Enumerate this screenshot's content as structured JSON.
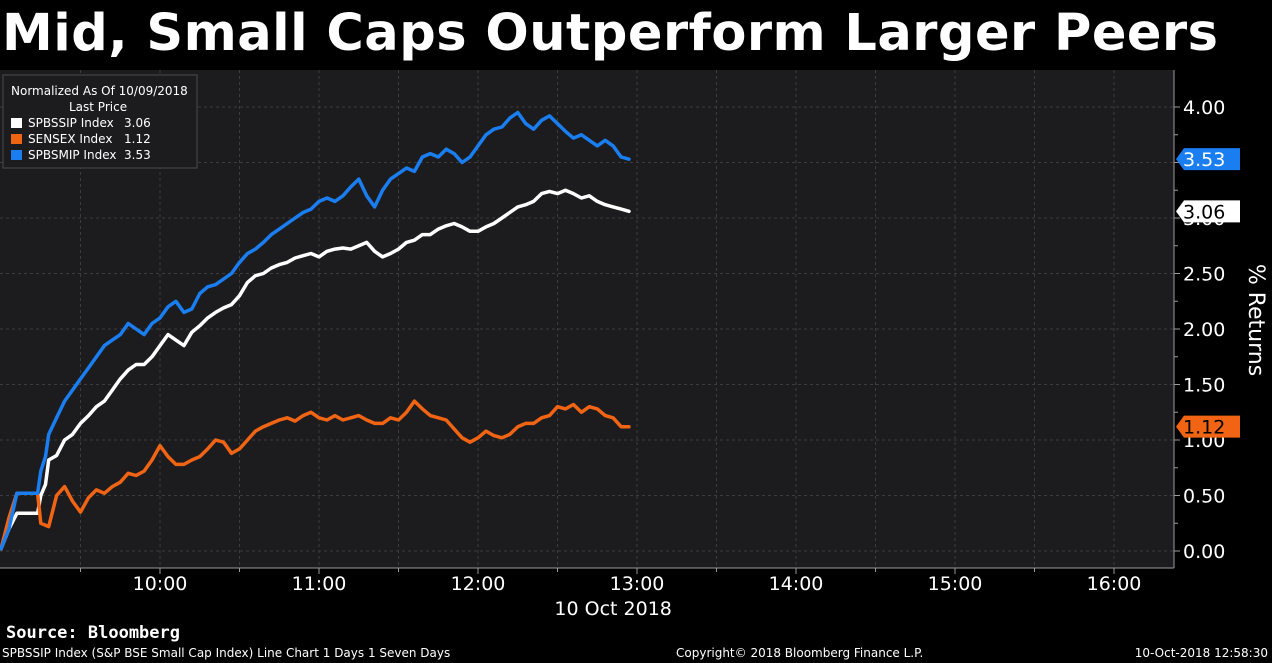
{
  "page": {
    "title": "Mid, Small Caps Outperform Larger Peers",
    "source": "Source: Bloomberg",
    "footer_left": "SPBSSIP Index (S&P BSE Small Cap Index) Line Chart 1 Days 1 Seven Days",
    "footer_center": "Copyright© 2018 Bloomberg Finance L.P.",
    "footer_right": "10-Oct-2018 12:58:30"
  },
  "colors": {
    "background": "#000000",
    "plot_background": "#1c1c1f",
    "grid": "#3c3c3c",
    "white_series": "#ffffff",
    "orange_series": "#f06414",
    "blue_series": "#1a7ef0"
  },
  "chart_data": {
    "type": "line",
    "title": "Mid, Small Caps Outperform Larger Peers",
    "xlabel": "10 Oct 2018",
    "ylabel": "% Returns",
    "ylim": [
      0,
      4.35
    ],
    "xlim_hours": [
      9.0,
      16.35
    ],
    "x_ticks": [
      10,
      11,
      12,
      13,
      14,
      15,
      16
    ],
    "x_tick_labels": [
      "10:00",
      "11:00",
      "12:00",
      "13:00",
      "14:00",
      "15:00",
      "16:00"
    ],
    "y_ticks": [
      0,
      0.5,
      1,
      1.5,
      2,
      2.5,
      3,
      3.5,
      4
    ],
    "y_tick_labels": [
      "0.00",
      "0.50",
      "1.00",
      "1.50",
      "2.00",
      "2.50",
      "3.00",
      "3.50",
      "4.00"
    ],
    "grid": true,
    "legend": {
      "header1": "Normalized As Of 10/09/2018",
      "header2": "Last Price",
      "position": "top-left",
      "entries": [
        {
          "label": "SPBSSIP Index",
          "value": "3.06",
          "color": "#ffffff"
        },
        {
          "label": "SENSEX Index",
          "value": "1.12",
          "color": "#f06414"
        },
        {
          "label": "SPBSMIP Index",
          "value": "3.53",
          "color": "#1a7ef0"
        }
      ]
    },
    "last_value_tags": [
      {
        "series": "SPBSMIP Index",
        "value": 3.53,
        "text": "3.53",
        "color": "#1a7ef0",
        "text_color": "#ffffff"
      },
      {
        "series": "SPBSSIP Index",
        "value": 3.06,
        "text": "3.06",
        "color": "#ffffff",
        "text_color": "#000000"
      },
      {
        "series": "SENSEX Index",
        "value": 1.12,
        "text": "1.12",
        "color": "#f06414",
        "text_color": "#000000"
      }
    ],
    "series": [
      {
        "name": "SPBSSIP Index",
        "color": "#ffffff",
        "points": [
          [
            9.0,
            0.02
          ],
          [
            9.05,
            0.2
          ],
          [
            9.1,
            0.34
          ],
          [
            9.15,
            0.34
          ],
          [
            9.2,
            0.34
          ],
          [
            9.23,
            0.34
          ],
          [
            9.25,
            0.5
          ],
          [
            9.28,
            0.6
          ],
          [
            9.3,
            0.82
          ],
          [
            9.35,
            0.86
          ],
          [
            9.4,
            1.0
          ],
          [
            9.45,
            1.05
          ],
          [
            9.5,
            1.15
          ],
          [
            9.55,
            1.22
          ],
          [
            9.6,
            1.3
          ],
          [
            9.65,
            1.35
          ],
          [
            9.7,
            1.45
          ],
          [
            9.75,
            1.55
          ],
          [
            9.8,
            1.63
          ],
          [
            9.85,
            1.68
          ],
          [
            9.9,
            1.68
          ],
          [
            9.95,
            1.75
          ],
          [
            10.0,
            1.85
          ],
          [
            10.05,
            1.95
          ],
          [
            10.1,
            1.9
          ],
          [
            10.15,
            1.85
          ],
          [
            10.2,
            1.97
          ],
          [
            10.25,
            2.03
          ],
          [
            10.3,
            2.1
          ],
          [
            10.35,
            2.15
          ],
          [
            10.4,
            2.19
          ],
          [
            10.45,
            2.22
          ],
          [
            10.5,
            2.3
          ],
          [
            10.55,
            2.42
          ],
          [
            10.6,
            2.48
          ],
          [
            10.65,
            2.5
          ],
          [
            10.7,
            2.55
          ],
          [
            10.75,
            2.58
          ],
          [
            10.8,
            2.6
          ],
          [
            10.85,
            2.64
          ],
          [
            10.9,
            2.66
          ],
          [
            10.95,
            2.68
          ],
          [
            11.0,
            2.65
          ],
          [
            11.05,
            2.7
          ],
          [
            11.1,
            2.72
          ],
          [
            11.15,
            2.73
          ],
          [
            11.2,
            2.72
          ],
          [
            11.25,
            2.75
          ],
          [
            11.3,
            2.78
          ],
          [
            11.35,
            2.7
          ],
          [
            11.4,
            2.65
          ],
          [
            11.45,
            2.68
          ],
          [
            11.5,
            2.72
          ],
          [
            11.55,
            2.78
          ],
          [
            11.6,
            2.8
          ],
          [
            11.65,
            2.85
          ],
          [
            11.7,
            2.85
          ],
          [
            11.75,
            2.9
          ],
          [
            11.8,
            2.93
          ],
          [
            11.85,
            2.95
          ],
          [
            11.9,
            2.92
          ],
          [
            11.95,
            2.88
          ],
          [
            12.0,
            2.88
          ],
          [
            12.05,
            2.92
          ],
          [
            12.1,
            2.95
          ],
          [
            12.15,
            3.0
          ],
          [
            12.2,
            3.05
          ],
          [
            12.25,
            3.1
          ],
          [
            12.3,
            3.12
          ],
          [
            12.35,
            3.15
          ],
          [
            12.4,
            3.22
          ],
          [
            12.45,
            3.24
          ],
          [
            12.5,
            3.22
          ],
          [
            12.55,
            3.25
          ],
          [
            12.6,
            3.22
          ],
          [
            12.65,
            3.18
          ],
          [
            12.7,
            3.2
          ],
          [
            12.75,
            3.15
          ],
          [
            12.8,
            3.12
          ],
          [
            12.85,
            3.1
          ],
          [
            12.9,
            3.08
          ],
          [
            12.95,
            3.06
          ]
        ]
      },
      {
        "name": "SENSEX Index",
        "color": "#f06414",
        "points": [
          [
            9.0,
            0.02
          ],
          [
            9.05,
            0.3
          ],
          [
            9.1,
            0.52
          ],
          [
            9.15,
            0.52
          ],
          [
            9.2,
            0.52
          ],
          [
            9.23,
            0.52
          ],
          [
            9.25,
            0.25
          ],
          [
            9.3,
            0.22
          ],
          [
            9.35,
            0.5
          ],
          [
            9.4,
            0.58
          ],
          [
            9.45,
            0.45
          ],
          [
            9.5,
            0.35
          ],
          [
            9.55,
            0.48
          ],
          [
            9.6,
            0.55
          ],
          [
            9.65,
            0.52
          ],
          [
            9.7,
            0.58
          ],
          [
            9.75,
            0.62
          ],
          [
            9.8,
            0.7
          ],
          [
            9.85,
            0.68
          ],
          [
            9.9,
            0.72
          ],
          [
            9.95,
            0.82
          ],
          [
            10.0,
            0.95
          ],
          [
            10.05,
            0.85
          ],
          [
            10.1,
            0.78
          ],
          [
            10.15,
            0.78
          ],
          [
            10.2,
            0.82
          ],
          [
            10.25,
            0.85
          ],
          [
            10.3,
            0.92
          ],
          [
            10.35,
            1.0
          ],
          [
            10.4,
            0.98
          ],
          [
            10.45,
            0.88
          ],
          [
            10.5,
            0.92
          ],
          [
            10.55,
            1.0
          ],
          [
            10.6,
            1.08
          ],
          [
            10.65,
            1.12
          ],
          [
            10.7,
            1.15
          ],
          [
            10.75,
            1.18
          ],
          [
            10.8,
            1.2
          ],
          [
            10.85,
            1.17
          ],
          [
            10.9,
            1.22
          ],
          [
            10.95,
            1.25
          ],
          [
            11.0,
            1.2
          ],
          [
            11.05,
            1.18
          ],
          [
            11.1,
            1.22
          ],
          [
            11.15,
            1.18
          ],
          [
            11.2,
            1.2
          ],
          [
            11.25,
            1.22
          ],
          [
            11.3,
            1.18
          ],
          [
            11.35,
            1.15
          ],
          [
            11.4,
            1.15
          ],
          [
            11.45,
            1.2
          ],
          [
            11.5,
            1.18
          ],
          [
            11.55,
            1.25
          ],
          [
            11.6,
            1.35
          ],
          [
            11.65,
            1.28
          ],
          [
            11.7,
            1.22
          ],
          [
            11.75,
            1.2
          ],
          [
            11.8,
            1.18
          ],
          [
            11.85,
            1.1
          ],
          [
            11.9,
            1.02
          ],
          [
            11.95,
            0.98
          ],
          [
            12.0,
            1.02
          ],
          [
            12.05,
            1.08
          ],
          [
            12.1,
            1.04
          ],
          [
            12.15,
            1.02
          ],
          [
            12.2,
            1.05
          ],
          [
            12.25,
            1.12
          ],
          [
            12.3,
            1.15
          ],
          [
            12.35,
            1.15
          ],
          [
            12.4,
            1.2
          ],
          [
            12.45,
            1.22
          ],
          [
            12.5,
            1.3
          ],
          [
            12.55,
            1.28
          ],
          [
            12.6,
            1.32
          ],
          [
            12.65,
            1.25
          ],
          [
            12.7,
            1.3
          ],
          [
            12.75,
            1.28
          ],
          [
            12.8,
            1.22
          ],
          [
            12.85,
            1.2
          ],
          [
            12.9,
            1.12
          ],
          [
            12.95,
            1.12
          ]
        ]
      },
      {
        "name": "SPBSMIP Index",
        "color": "#1a7ef0",
        "points": [
          [
            9.0,
            0.02
          ],
          [
            9.05,
            0.2
          ],
          [
            9.1,
            0.52
          ],
          [
            9.15,
            0.52
          ],
          [
            9.2,
            0.52
          ],
          [
            9.23,
            0.52
          ],
          [
            9.25,
            0.72
          ],
          [
            9.28,
            0.85
          ],
          [
            9.3,
            1.05
          ],
          [
            9.35,
            1.2
          ],
          [
            9.4,
            1.35
          ],
          [
            9.45,
            1.45
          ],
          [
            9.5,
            1.55
          ],
          [
            9.55,
            1.65
          ],
          [
            9.6,
            1.75
          ],
          [
            9.65,
            1.85
          ],
          [
            9.7,
            1.9
          ],
          [
            9.75,
            1.95
          ],
          [
            9.8,
            2.05
          ],
          [
            9.85,
            2.0
          ],
          [
            9.9,
            1.95
          ],
          [
            9.95,
            2.05
          ],
          [
            10.0,
            2.1
          ],
          [
            10.05,
            2.2
          ],
          [
            10.1,
            2.25
          ],
          [
            10.15,
            2.15
          ],
          [
            10.2,
            2.18
          ],
          [
            10.25,
            2.32
          ],
          [
            10.3,
            2.38
          ],
          [
            10.35,
            2.4
          ],
          [
            10.4,
            2.45
          ],
          [
            10.45,
            2.5
          ],
          [
            10.5,
            2.6
          ],
          [
            10.55,
            2.68
          ],
          [
            10.6,
            2.72
          ],
          [
            10.65,
            2.78
          ],
          [
            10.7,
            2.85
          ],
          [
            10.75,
            2.9
          ],
          [
            10.8,
            2.95
          ],
          [
            10.85,
            3.0
          ],
          [
            10.9,
            3.05
          ],
          [
            10.95,
            3.08
          ],
          [
            11.0,
            3.15
          ],
          [
            11.05,
            3.18
          ],
          [
            11.1,
            3.15
          ],
          [
            11.15,
            3.2
          ],
          [
            11.2,
            3.28
          ],
          [
            11.25,
            3.35
          ],
          [
            11.3,
            3.2
          ],
          [
            11.35,
            3.1
          ],
          [
            11.4,
            3.25
          ],
          [
            11.45,
            3.35
          ],
          [
            11.5,
            3.4
          ],
          [
            11.55,
            3.45
          ],
          [
            11.6,
            3.42
          ],
          [
            11.65,
            3.55
          ],
          [
            11.7,
            3.58
          ],
          [
            11.75,
            3.55
          ],
          [
            11.8,
            3.62
          ],
          [
            11.85,
            3.58
          ],
          [
            11.9,
            3.5
          ],
          [
            11.95,
            3.55
          ],
          [
            12.0,
            3.65
          ],
          [
            12.05,
            3.75
          ],
          [
            12.1,
            3.8
          ],
          [
            12.15,
            3.82
          ],
          [
            12.2,
            3.9
          ],
          [
            12.25,
            3.95
          ],
          [
            12.3,
            3.85
          ],
          [
            12.35,
            3.8
          ],
          [
            12.4,
            3.88
          ],
          [
            12.45,
            3.92
          ],
          [
            12.5,
            3.85
          ],
          [
            12.55,
            3.78
          ],
          [
            12.6,
            3.72
          ],
          [
            12.65,
            3.75
          ],
          [
            12.7,
            3.7
          ],
          [
            12.75,
            3.65
          ],
          [
            12.8,
            3.7
          ],
          [
            12.85,
            3.65
          ],
          [
            12.9,
            3.55
          ],
          [
            12.95,
            3.53
          ]
        ]
      }
    ]
  }
}
